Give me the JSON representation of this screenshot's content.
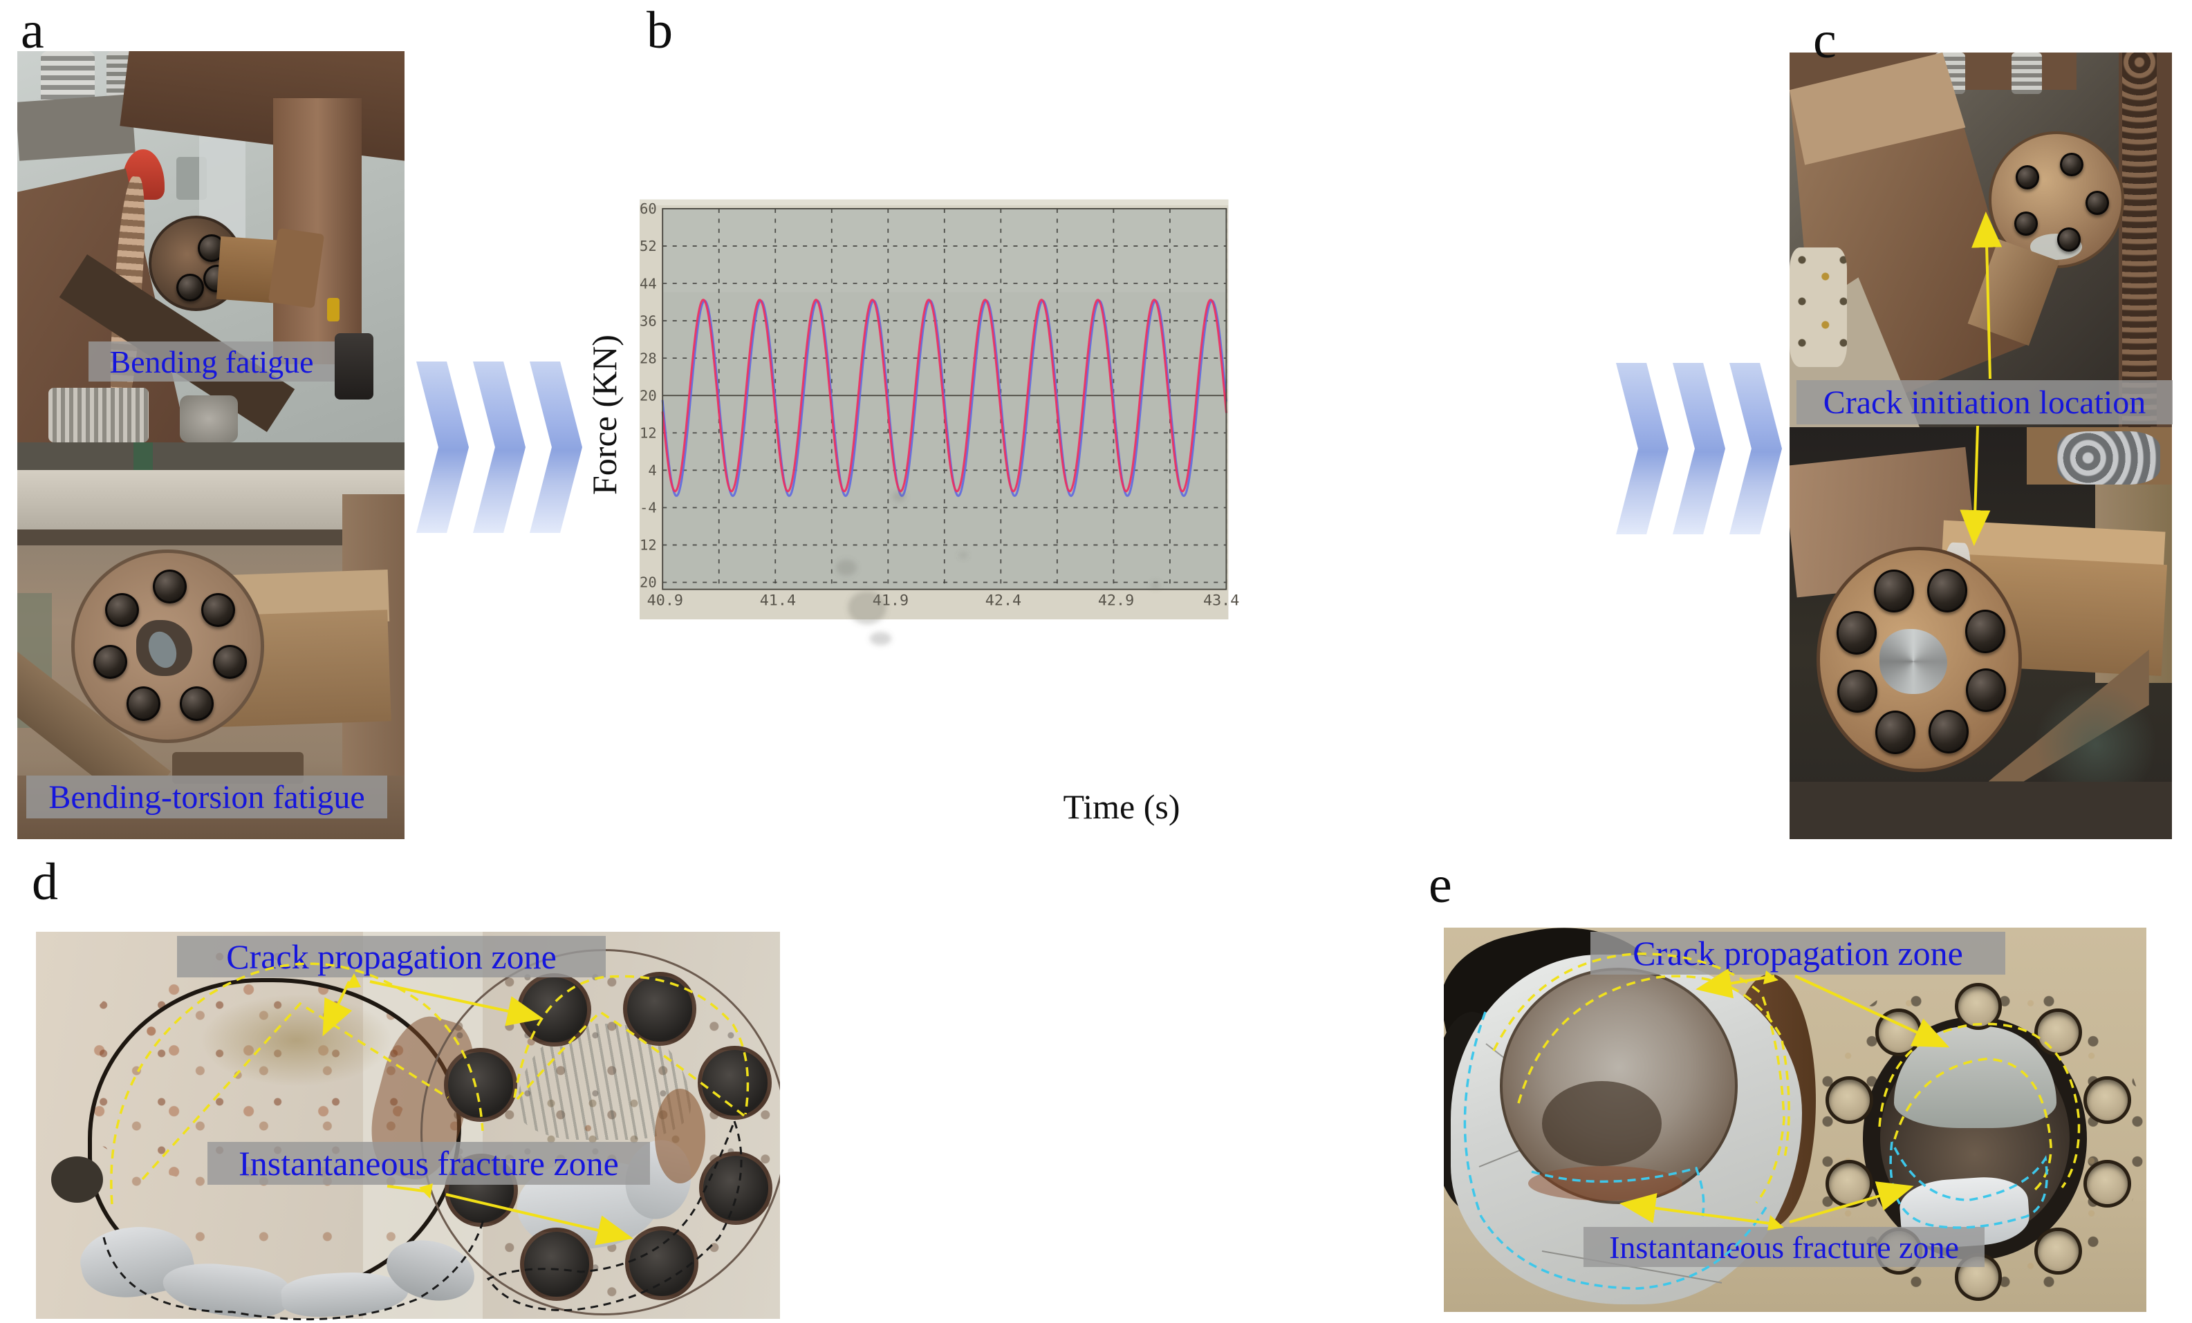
{
  "figure": {
    "type": "fatigue-test-multipanel-figure",
    "panels": {
      "a": {
        "label": "a",
        "caption_top": "Bending fatigue",
        "caption_bottom": "Bending-torsion fatigue"
      },
      "b": {
        "label": "b"
      },
      "c": {
        "label": "c",
        "caption": "Crack initiation location"
      },
      "d": {
        "label": "d",
        "caption_top": "Crack propagation zone",
        "caption_bottom": "Instantaneous fracture zone"
      },
      "e": {
        "label": "e",
        "caption_top": "Crack propagation zone",
        "caption_bottom": "Instantaneous fracture zone"
      }
    },
    "annotations": {
      "d_zones": [
        {
          "label": "Crack propagation zone",
          "outline": "yellow-dashed"
        },
        {
          "label": "Instantaneous fracture zone",
          "outline": "black-dashed"
        }
      ],
      "e_zones": [
        {
          "label": "Crack propagation zone",
          "outline": "yellow-dashed"
        },
        {
          "label": "Instantaneous fracture zone",
          "outline": "cyan-dashed"
        }
      ]
    },
    "colors": {
      "caption_text": "#1515dd",
      "caption_background": "rgba(152,152,152,0.82)",
      "annotation_yellow": "#f2e017",
      "annotation_cyan": "#3ec7ea",
      "annotation_black": "#1a1a1a",
      "chevron_blue": "#93a9e2",
      "wave_red": "#ee2e60",
      "wave_blue": "#5f6ae0",
      "chart_screen_beige": "#d8d4c6",
      "chart_plot_gray": "#b7bbb3"
    }
  },
  "chart_data": {
    "type": "line",
    "title": "",
    "xlabel": "Time (s)",
    "ylabel": "Force (KN)",
    "xlim": [
      40.9,
      43.4
    ],
    "ylim": [
      -21.5,
      60
    ],
    "x_ticks": [
      40.9,
      41.4,
      41.9,
      42.4,
      42.9,
      43.4
    ],
    "y_ticks": [
      60,
      52,
      44,
      36,
      28,
      20,
      12,
      4,
      -4,
      -12,
      -20
    ],
    "x_grid_step_s": 0.25,
    "grid": "dashed",
    "mean_line_kn": 20,
    "legend": "none",
    "series": [
      {
        "name": "blue-trace",
        "color": "#5f6ae0",
        "waveform": "sine",
        "mean_kn": 19.4,
        "amplitude_kn": 20.9,
        "period_s": 0.25,
        "first_trough_s": 40.9615
      },
      {
        "name": "red-trace",
        "color": "#ee2e60",
        "waveform": "sine",
        "mean_kn": 20.0,
        "amplitude_kn": 20.5,
        "period_s": 0.25,
        "first_trough_s": 40.9555
      }
    ]
  }
}
